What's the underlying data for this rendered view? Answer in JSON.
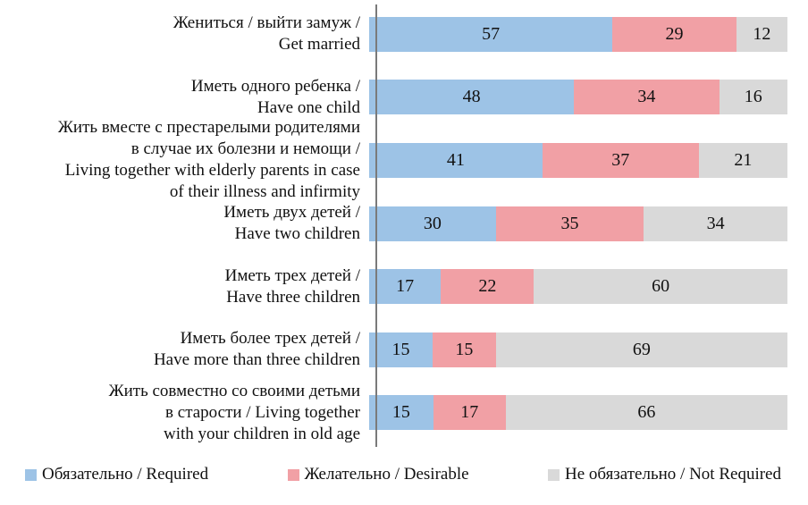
{
  "chart_data": {
    "type": "bar",
    "orientation": "horizontal",
    "stacked": true,
    "percent_scale": true,
    "title": "",
    "xlabel": "",
    "ylabel": "",
    "grid": false,
    "legend_position": "bottom",
    "axis_color": "#7a7a7a",
    "categories": [
      "Жениться / выйти замуж /\nGet married",
      "Иметь одного ребенка /\nHave one child",
      "Жить вместе с престарелыми родителями\nв случае их болезни и немощи /\nLiving together with elderly parents in case\nof their illness and infirmity",
      "Иметь двух детей /\nHave two children",
      "Иметь трех детей /\nHave three children",
      "Иметь более трех детей /\nHave more than three children",
      "Жить совместно со своими детьми\nв старости / Living together\nwith your children in old age"
    ],
    "series": [
      {
        "name": "Обязательно / Required",
        "color": "#9dc3e6",
        "values": [
          57,
          48,
          41,
          30,
          17,
          15,
          15
        ]
      },
      {
        "name": "Желательно / Desirable",
        "color": "#f1a0a5",
        "values": [
          29,
          34,
          37,
          35,
          22,
          15,
          17
        ]
      },
      {
        "name": "Не обязательно / Not Required",
        "color": "#d9d9d9",
        "values": [
          12,
          16,
          21,
          34,
          60,
          69,
          66
        ]
      }
    ]
  },
  "legend": {
    "items": [
      {
        "label": "Обязательно / Required",
        "color": "#9dc3e6"
      },
      {
        "label": "Желательно / Desirable",
        "color": "#f1a0a5"
      },
      {
        "label": "Не обязательно / Not Required",
        "color": "#d9d9d9"
      }
    ]
  }
}
